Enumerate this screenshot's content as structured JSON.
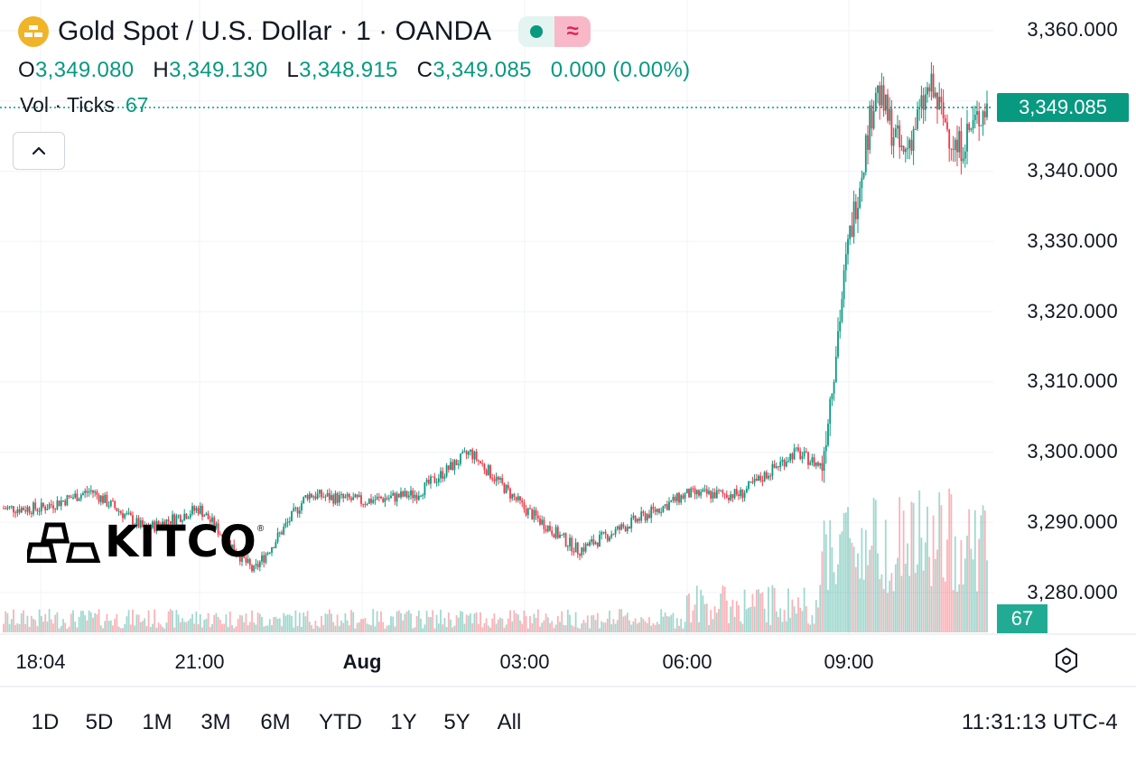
{
  "header": {
    "symbol_icon": "gold-bars-icon",
    "title": "Gold Spot / U.S. Dollar · 1 · OANDA",
    "status_icons": [
      "market-open-dot-icon",
      "delayed-data-wave-icon"
    ],
    "ohlc": {
      "o_label": "O",
      "o_value": "3,349.080",
      "h_label": "H",
      "h_value": "3,349.130",
      "l_label": "L",
      "l_value": "3,348.915",
      "c_label": "C",
      "c_value": "3,349.085",
      "change": "0.000 (0.00%)"
    },
    "volume": {
      "label": "Vol · Ticks",
      "value": "67"
    },
    "collapse_icon": "chevron-up-icon"
  },
  "colors": {
    "up": "#089981",
    "down": "#f23645",
    "price_tag": "#089981",
    "volume_tag": "#22ab94",
    "grid": "#f0f3fa"
  },
  "y_axis": {
    "ticks": [
      "3,360.000",
      "3,340.000",
      "3,330.000",
      "3,320.000",
      "3,310.000",
      "3,300.000",
      "3,290.000",
      "3,280.000"
    ]
  },
  "last_price": "3,349.085",
  "last_volume": "67",
  "x_axis": {
    "ticks": [
      "18:04",
      "21:00",
      "Aug",
      "03:00",
      "06:00",
      "09:00"
    ]
  },
  "watermark": {
    "text": "KITCO",
    "symbol": "®"
  },
  "ranges": [
    "1D",
    "5D",
    "1M",
    "3M",
    "6M",
    "YTD",
    "1Y",
    "5Y",
    "All"
  ],
  "clock": "11:31:13 UTC-4",
  "settings_icon": "hexagon-settings-icon",
  "chart_data": {
    "type": "candlestick",
    "x": [
      "18:04",
      "19:00",
      "20:00",
      "21:00",
      "22:00",
      "23:00",
      "00:00",
      "01:00",
      "02:00",
      "03:00",
      "04:00",
      "05:00",
      "06:00",
      "07:00",
      "08:00",
      "08:30",
      "09:00",
      "09:30",
      "10:00",
      "10:30",
      "11:00",
      "11:31"
    ],
    "close": [
      3292.0,
      3294.5,
      3289.0,
      3292.0,
      3283.0,
      3294.0,
      3293.0,
      3294.0,
      3300.0,
      3292.0,
      3286.0,
      3290.0,
      3294.0,
      3294.0,
      3300.0,
      3298.0,
      3330.0,
      3352.0,
      3342.0,
      3352.0,
      3343.0,
      3349.085
    ],
    "ylim": [
      3275,
      3362
    ],
    "volume_note": "volume spikes after 08:30"
  }
}
